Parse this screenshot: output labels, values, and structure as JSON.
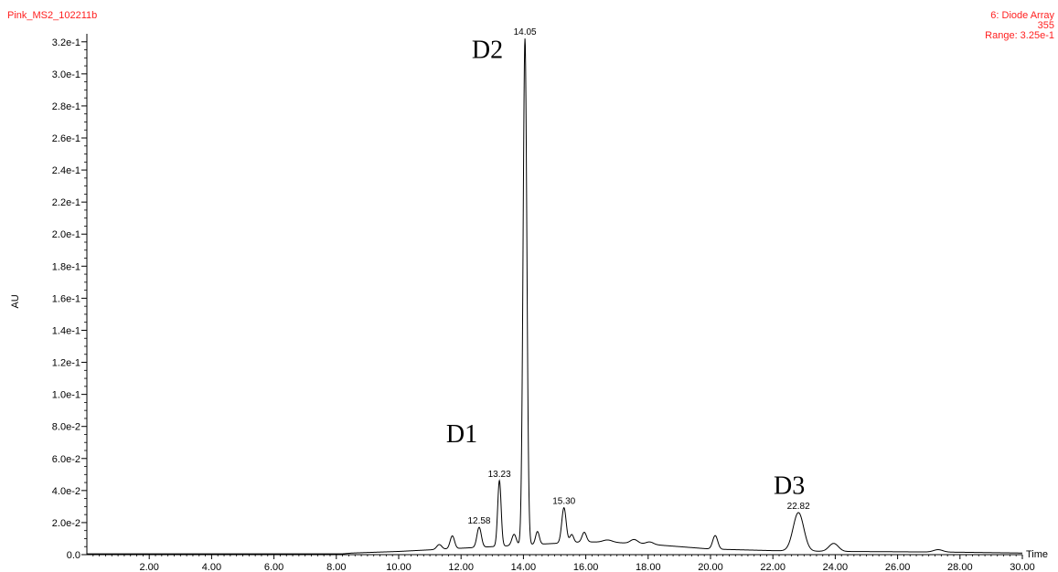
{
  "header": {
    "sample_name": "Pink_MS2_102211b",
    "detector": "6: Diode Array",
    "wavelength": "355",
    "range": "Range: 3.25e-1",
    "color": "#ff2020"
  },
  "chart_data": {
    "type": "line",
    "title": "",
    "xlabel": "Time",
    "ylabel": "AU",
    "xlim": [
      0,
      30
    ],
    "ylim": [
      0,
      0.325
    ],
    "grid": false,
    "x_ticks": [
      "2.00",
      "4.00",
      "6.00",
      "8.00",
      "10.00",
      "12.00",
      "14.00",
      "16.00",
      "18.00",
      "20.00",
      "22.00",
      "24.00",
      "26.00",
      "28.00",
      "30.00"
    ],
    "y_ticks": [
      "0.0",
      "2.0e-2",
      "4.0e-2",
      "6.0e-2",
      "8.0e-2",
      "1.0e-1",
      "1.2e-1",
      "1.4e-1",
      "1.6e-1",
      "1.8e-1",
      "2.0e-1",
      "2.2e-1",
      "2.4e-1",
      "2.6e-1",
      "2.8e-1",
      "3.0e-1",
      "3.2e-1"
    ],
    "baseline": [
      [
        0,
        0.0005
      ],
      [
        8.2,
        0.0005
      ],
      [
        8.5,
        0.001
      ],
      [
        10,
        0.002
      ],
      [
        11,
        0.003
      ],
      [
        12,
        0.004
      ],
      [
        13,
        0.005
      ],
      [
        14,
        0.006
      ],
      [
        15,
        0.007
      ],
      [
        16,
        0.008
      ],
      [
        17,
        0.0075
      ],
      [
        18,
        0.0065
      ],
      [
        19,
        0.005
      ],
      [
        20,
        0.0035
      ],
      [
        21,
        0.003
      ],
      [
        22,
        0.0025
      ],
      [
        23,
        0.0022
      ],
      [
        24,
        0.002
      ],
      [
        26,
        0.0018
      ],
      [
        28,
        0.0015
      ],
      [
        30,
        0.001
      ]
    ],
    "peaks": [
      {
        "rt": 11.3,
        "height": 0.003,
        "width": 0.08
      },
      {
        "rt": 11.72,
        "height": 0.008,
        "width": 0.07
      },
      {
        "rt": 12.58,
        "height": 0.0125,
        "width": 0.07,
        "label": "12.58"
      },
      {
        "rt": 13.23,
        "height": 0.041,
        "width": 0.055,
        "label": "13.23"
      },
      {
        "rt": 13.7,
        "height": 0.007,
        "width": 0.07
      },
      {
        "rt": 14.05,
        "height": 0.316,
        "width": 0.06,
        "label": "14.05"
      },
      {
        "rt": 14.45,
        "height": 0.008,
        "width": 0.06
      },
      {
        "rt": 15.3,
        "height": 0.022,
        "width": 0.07,
        "label": "15.30"
      },
      {
        "rt": 15.55,
        "height": 0.005,
        "width": 0.06
      },
      {
        "rt": 15.95,
        "height": 0.006,
        "width": 0.07
      },
      {
        "rt": 16.7,
        "height": 0.0015,
        "width": 0.15
      },
      {
        "rt": 17.55,
        "height": 0.0025,
        "width": 0.12
      },
      {
        "rt": 18.05,
        "height": 0.0015,
        "width": 0.12
      },
      {
        "rt": 20.15,
        "height": 0.0085,
        "width": 0.08
      },
      {
        "rt": 22.82,
        "height": 0.024,
        "width": 0.17,
        "label": "22.82"
      },
      {
        "rt": 23.95,
        "height": 0.005,
        "width": 0.15
      },
      {
        "rt": 27.3,
        "height": 0.0015,
        "width": 0.15
      }
    ],
    "annotations": [
      {
        "text": "D2",
        "x": 14.05,
        "y": 0.31
      },
      {
        "text": "D1",
        "x": 13.23,
        "y": 0.07
      },
      {
        "text": "D3",
        "x": 22.82,
        "y": 0.038
      }
    ]
  }
}
